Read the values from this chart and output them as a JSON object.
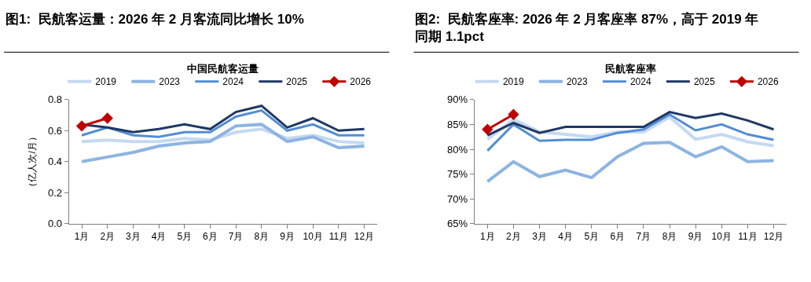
{
  "chart_data": [
    {
      "type": "line",
      "title": "图1:  民航客运量：2026 年 2 月客流同比增长 10%",
      "subtitle": "中国民航客运量",
      "ylabel": "（亿人次/月）",
      "categories": [
        "1月",
        "2月",
        "3月",
        "4月",
        "5月",
        "6月",
        "7月",
        "8月",
        "9月",
        "10月",
        "11月",
        "12月"
      ],
      "ylim": [
        0,
        0.8
      ],
      "yticks": [
        {
          "value": 0,
          "label": "0.0"
        },
        0.2,
        0.4,
        0.6,
        0.8
      ],
      "grid": false,
      "legend": "top",
      "series": [
        {
          "name": "2019",
          "color": "#c5d9f1",
          "values": [
            0.53,
            0.54,
            0.53,
            0.53,
            0.55,
            0.54,
            0.59,
            0.61,
            0.55,
            0.57,
            0.53,
            0.52
          ]
        },
        {
          "name": "2023",
          "color": "#8db4e2",
          "values": [
            0.4,
            0.43,
            0.46,
            0.5,
            0.52,
            0.53,
            0.63,
            0.64,
            0.53,
            0.56,
            0.49,
            0.5
          ]
        },
        {
          "name": "2024",
          "color": "#538dd5",
          "values": [
            0.57,
            0.62,
            0.57,
            0.56,
            0.59,
            0.59,
            0.69,
            0.73,
            0.6,
            0.64,
            0.57,
            0.57
          ]
        },
        {
          "name": "2025",
          "color": "#1f3864",
          "values": [
            0.64,
            0.62,
            0.59,
            0.61,
            0.64,
            0.61,
            0.72,
            0.76,
            0.62,
            0.68,
            0.6,
            0.61
          ]
        },
        {
          "name": "2026",
          "color": "#c00000",
          "marker": "diamond",
          "values": [
            0.63,
            0.68,
            null,
            null,
            null,
            null,
            null,
            null,
            null,
            null,
            null,
            null
          ]
        }
      ]
    },
    {
      "type": "line",
      "title": "图2:  民航客座率: 2026 年 2 月客座率 87%，高于 2019 年同期 1.1pct",
      "subtitle": "民航客座率",
      "categories": [
        "1月",
        "2月",
        "3月",
        "4月",
        "5月",
        "6月",
        "7月",
        "8月",
        "9月",
        "10月",
        "11月",
        "12月"
      ],
      "ylim": [
        65,
        90
      ],
      "yticks": [
        {
          "value": 65,
          "label": "65%"
        },
        {
          "value": 70,
          "label": "70%"
        },
        {
          "value": 75,
          "label": "75%"
        },
        {
          "value": 80,
          "label": "80%"
        },
        {
          "value": 85,
          "label": "85%"
        },
        {
          "value": 90,
          "label": "90%"
        }
      ],
      "grid": false,
      "legend": "top",
      "series": [
        {
          "name": "2019",
          "color": "#c5d9f1",
          "values": [
            82,
            86,
            83.5,
            83,
            82.5,
            83.5,
            83.5,
            86.5,
            82,
            83,
            81.5,
            80.7
          ]
        },
        {
          "name": "2023",
          "color": "#8db4e2",
          "values": [
            73.5,
            77.5,
            74.5,
            75.8,
            74.3,
            78.5,
            81.2,
            81.4,
            78.5,
            80.5,
            77.5,
            77.7
          ]
        },
        {
          "name": "2024",
          "color": "#538dd5",
          "values": [
            79.7,
            85,
            81.7,
            81.9,
            81.9,
            83.3,
            84,
            87,
            83.8,
            85,
            83,
            81.9
          ]
        },
        {
          "name": "2025",
          "color": "#1f3864",
          "values": [
            82.8,
            85.3,
            83.3,
            84.5,
            84.5,
            84.5,
            84.5,
            87.5,
            86.3,
            87.2,
            85.8,
            84
          ]
        },
        {
          "name": "2026",
          "color": "#c00000",
          "marker": "diamond",
          "values": [
            84,
            87,
            null,
            null,
            null,
            null,
            null,
            null,
            null,
            null,
            null,
            null
          ]
        }
      ]
    }
  ]
}
